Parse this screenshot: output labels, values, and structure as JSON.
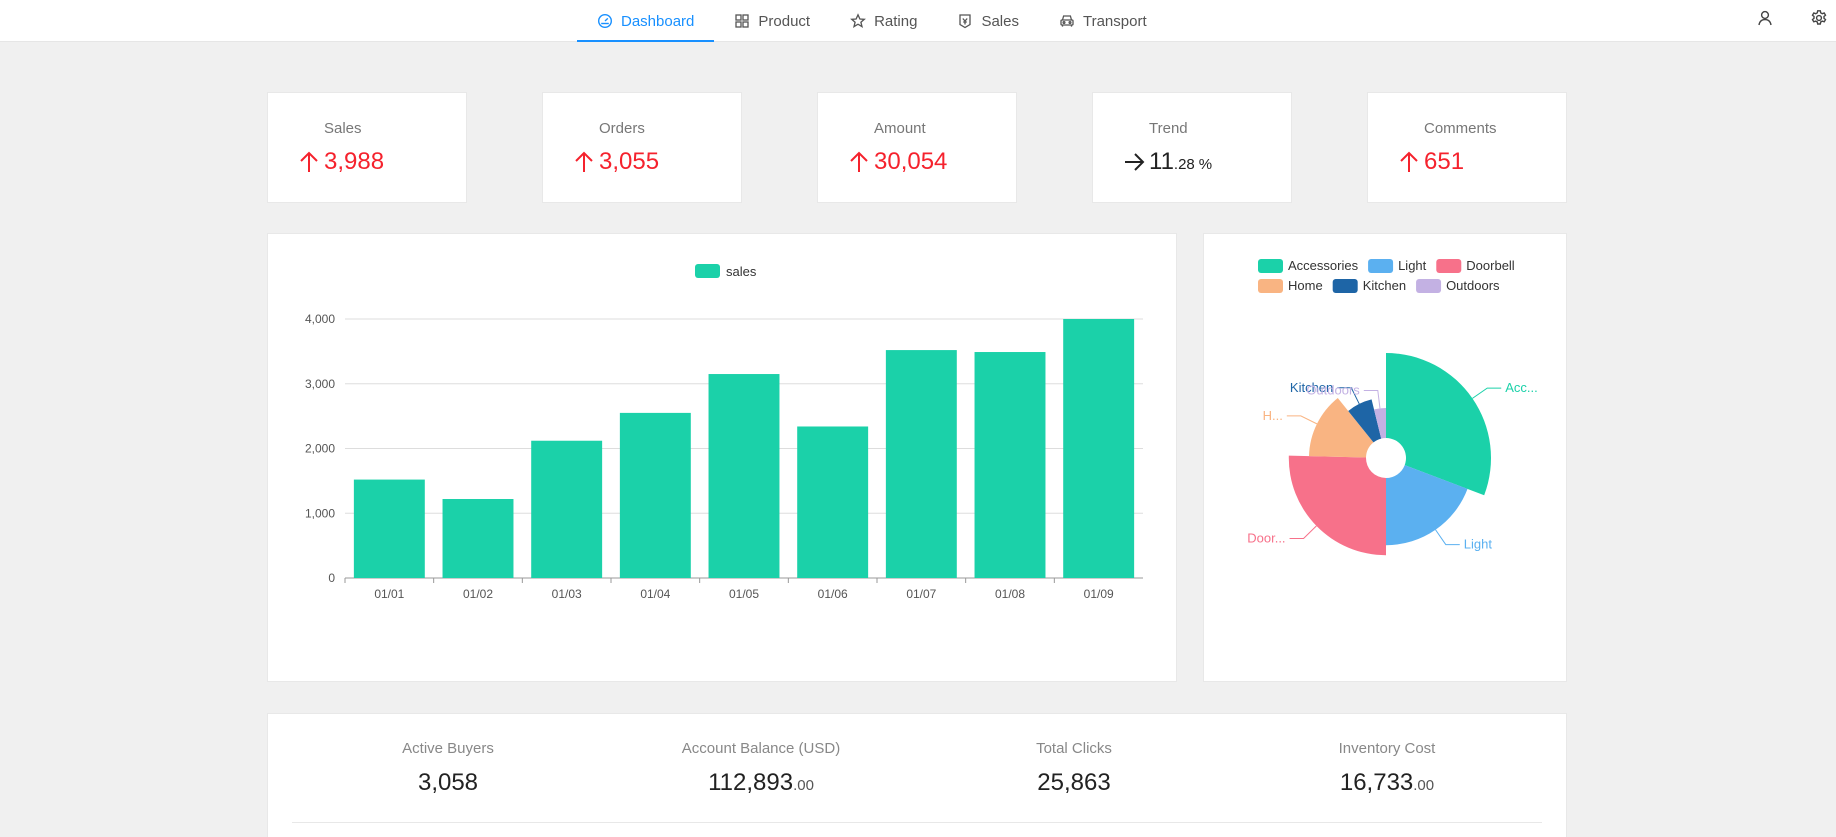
{
  "nav": {
    "items": [
      {
        "label": "Dashboard",
        "icon": "dashboard-icon",
        "active": true
      },
      {
        "label": "Product",
        "icon": "grid-icon",
        "active": false
      },
      {
        "label": "Rating",
        "icon": "star-icon",
        "active": false
      },
      {
        "label": "Sales",
        "icon": "sales-icon",
        "active": false
      },
      {
        "label": "Transport",
        "icon": "car-icon",
        "active": false
      }
    ],
    "right_icons": [
      "user-icon",
      "gear-icon"
    ]
  },
  "stats": [
    {
      "label": "Sales",
      "trend": "up",
      "value": "3,988"
    },
    {
      "label": "Orders",
      "trend": "up",
      "value": "3,055"
    },
    {
      "label": "Amount",
      "trend": "up",
      "value": "30,054"
    },
    {
      "label": "Trend",
      "trend": "flat",
      "value": "11",
      "decimal": ".28",
      "unit": "%"
    },
    {
      "label": "Comments",
      "trend": "up",
      "value": "651"
    }
  ],
  "colors": {
    "accent": "#1890ff",
    "up": "#f5222d",
    "bar": "#1bd1a9"
  },
  "chart_data": [
    {
      "type": "bar",
      "categories": [
        "01/01",
        "01/02",
        "01/03",
        "01/04",
        "01/05",
        "01/06",
        "01/07",
        "01/08",
        "01/09"
      ],
      "series": [
        {
          "name": "sales",
          "values": [
            1520,
            1220,
            2120,
            2550,
            3150,
            2340,
            3520,
            3490,
            4000
          ]
        }
      ],
      "yticks": [
        "0",
        "1,000",
        "2,000",
        "3,000",
        "4,000"
      ],
      "ylim": [
        0,
        4000
      ],
      "grid": true,
      "legend": "top-center"
    },
    {
      "type": "pie",
      "rose": true,
      "legend": "top",
      "slices": [
        {
          "name": "Accessories",
          "label": "Acc...",
          "value": 40,
          "color": "#1bd1a9"
        },
        {
          "name": "Light",
          "label": "Light",
          "value": 25,
          "color": "#5bb0f0"
        },
        {
          "name": "Doorbell",
          "label": "Door...",
          "value": 33,
          "color": "#f7718a"
        },
        {
          "name": "Home",
          "label": "H...",
          "value": 18,
          "color": "#f9b482"
        },
        {
          "name": "Kitchen",
          "label": "Kitchen",
          "value": 9,
          "color": "#1e65a6"
        },
        {
          "name": "Outdoors",
          "label": "Outdoors",
          "value": 5,
          "color": "#c3b1e3"
        }
      ]
    }
  ],
  "metrics": [
    {
      "label": "Active Buyers",
      "value": "3,058",
      "decimal": ""
    },
    {
      "label": "Account Balance (USD)",
      "value": "112,893",
      "decimal": ".00"
    },
    {
      "label": "Total Clicks",
      "value": "25,863",
      "decimal": ""
    },
    {
      "label": "Inventory Cost",
      "value": "16,733",
      "decimal": ".00"
    }
  ]
}
